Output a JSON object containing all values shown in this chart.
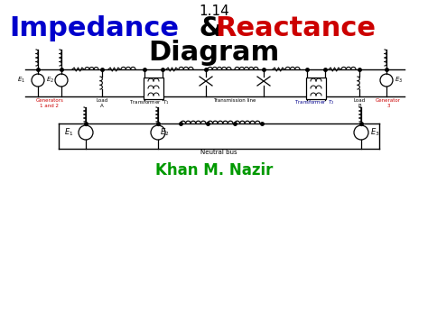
{
  "title_number": "1.14",
  "title_line1_blue": "Impedance",
  "title_line1_amp": " & ",
  "title_line1_red": "Reactance",
  "title_line2": "Diagram",
  "subtitle": "Khan M. Nazir",
  "bg_color": "#ffffff",
  "blue_color": "#0000cc",
  "red_color": "#cc0000",
  "black_color": "#000000",
  "green_color": "#009900",
  "neutral_bus_label": "Neutral bus",
  "fig_width": 4.74,
  "fig_height": 3.55,
  "dpi": 100
}
